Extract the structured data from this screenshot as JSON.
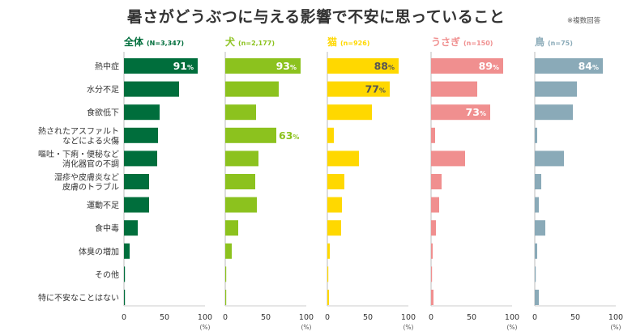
{
  "chart_data": {
    "type": "bar",
    "title": "暑さがどうぶつに与える影響で不安に思っていること",
    "note": "※複数回答",
    "categories": [
      [
        "熱中症"
      ],
      [
        "水分不足"
      ],
      [
        "食欲低下"
      ],
      [
        "熱されたアスファルト",
        "などによる火傷"
      ],
      [
        "嘔吐・下痢・便秘など",
        "消化器官の不調"
      ],
      [
        "湿疹や皮膚炎など",
        "皮膚のトラブル"
      ],
      [
        "運動不足"
      ],
      [
        "食中毒"
      ],
      [
        "体臭の増加"
      ],
      [
        "その他"
      ],
      [
        "特に不安なことはない"
      ]
    ],
    "xlim": [
      0,
      100
    ],
    "xticks": [
      0,
      50,
      100
    ],
    "xunit": "(%)",
    "series": [
      {
        "name": "全体",
        "n_label": "(N=3,347)",
        "color": "#006e3c",
        "values": [
          91,
          68,
          44,
          42,
          41,
          31,
          31,
          17,
          7,
          1,
          1
        ],
        "labels": {
          "0": "91"
        }
      },
      {
        "name": "犬",
        "n_label": "(n=2,177)",
        "color": "#8cc21e",
        "values": [
          93,
          66,
          38,
          63,
          41,
          37,
          39,
          16,
          8,
          1,
          1
        ],
        "labels": {
          "0": "93",
          "3": "63"
        }
      },
      {
        "name": "猫",
        "n_label": "(n=926)",
        "color": "#ffd800",
        "values": [
          88,
          77,
          55,
          8,
          39,
          21,
          18,
          17,
          3,
          1,
          2
        ],
        "labels": {
          "0": "88",
          "1": "77"
        }
      },
      {
        "name": "うさぎ",
        "n_label": "(n=150)",
        "color": "#f08f8f",
        "values": [
          89,
          57,
          73,
          5,
          42,
          13,
          10,
          6,
          2,
          1,
          3
        ],
        "labels": {
          "0": "89",
          "2": "73"
        }
      },
      {
        "name": "鳥",
        "n_label": "(n=75)",
        "color": "#8aaab8",
        "values": [
          84,
          52,
          47,
          3,
          36,
          8,
          5,
          13,
          3,
          1,
          5
        ],
        "labels": {
          "0": "84"
        }
      }
    ]
  }
}
